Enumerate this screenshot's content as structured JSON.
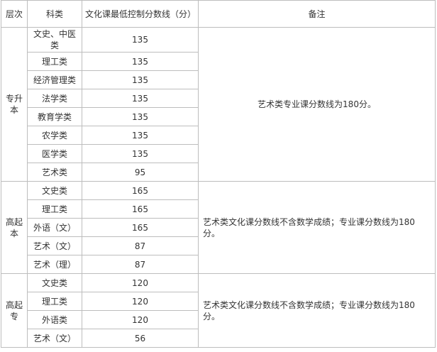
{
  "headers": [
    "层次",
    "科类",
    "文化课最低控制分数线（分）",
    "备注"
  ],
  "groups": [
    {
      "level": "专升本",
      "note": "艺术类专业课分数线为180分。",
      "rows": [
        {
          "category": "文史、中医类",
          "score": "135"
        },
        {
          "category": "理工类",
          "score": "135"
        },
        {
          "category": "经济管理类",
          "score": "135"
        },
        {
          "category": "法学类",
          "score": "135"
        },
        {
          "category": "教育学类",
          "score": "135"
        },
        {
          "category": "农学类",
          "score": "135"
        },
        {
          "category": "医学类",
          "score": "135"
        },
        {
          "category": "艺术类",
          "score": "95"
        }
      ]
    },
    {
      "level": "高起本",
      "note": "艺术类文化课分数线不含数学成绩；专业课分数线为180分。",
      "rows": [
        {
          "category": "文史类",
          "score": "165"
        },
        {
          "category": "理工类",
          "score": "165"
        },
        {
          "category": "外语（文）",
          "score": "165"
        },
        {
          "category": "艺术（文）",
          "score": "87"
        },
        {
          "category": "艺术（理）",
          "score": "87"
        }
      ]
    },
    {
      "level": "高起专",
      "note": "艺术类文化课分数线不含数学成绩；专业课分数线为180分。",
      "rows": [
        {
          "category": "文史类",
          "score": "120"
        },
        {
          "category": "理工类",
          "score": "120"
        },
        {
          "category": "外语类",
          "score": "120"
        },
        {
          "category": "艺术（文）",
          "score": "56"
        }
      ]
    }
  ]
}
